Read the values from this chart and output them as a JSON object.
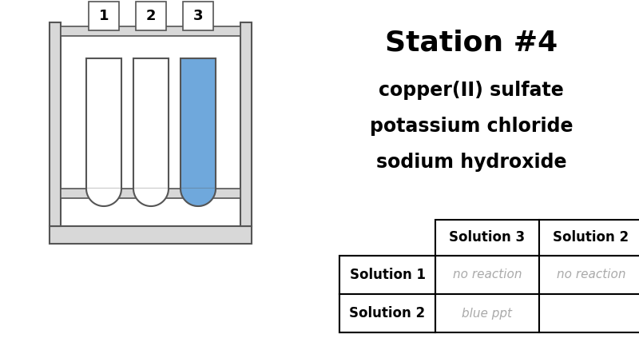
{
  "title": "Station #4",
  "subtitle_lines": [
    "copper(II) sulfate",
    "potassium chloride",
    "sodium hydroxide"
  ],
  "background_color": "#ffffff",
  "tube_colors": [
    "#ffffff",
    "#ffffff",
    "#6fa8dc"
  ],
  "tube_labels": [
    "1",
    "2",
    "3"
  ],
  "table_col_headers": [
    "Solution 3",
    "Solution 2"
  ],
  "table_row_headers": [
    "Solution 1",
    "Solution 2"
  ],
  "table_data": [
    [
      "no reaction",
      "no reaction"
    ],
    [
      "blue ppt",
      ""
    ]
  ],
  "table_data_color": "#aaaaaa",
  "rack_color": "#d8d8d8",
  "rack_edge": "#555555",
  "tube_edge": "#555555"
}
